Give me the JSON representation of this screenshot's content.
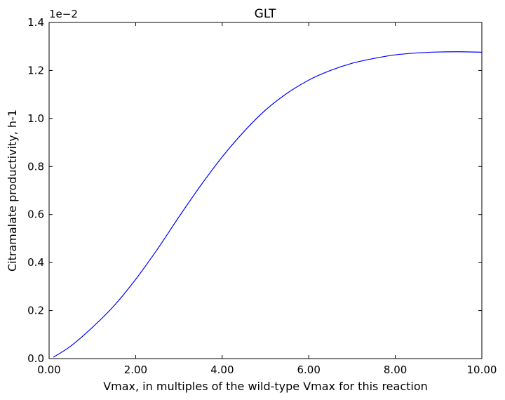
{
  "chart_data": {
    "type": "line",
    "title": "GLT",
    "xlabel": "Vmax, in multiples of the wild-type Vmax for this reaction",
    "ylabel": "Citramalate productivity, h-1",
    "y_offset_label": "1e−2",
    "xlim": [
      0,
      10
    ],
    "ylim": [
      0,
      1.4
    ],
    "grid": false,
    "x_ticks": [
      0,
      2,
      4,
      6,
      8,
      10
    ],
    "x_tick_labels": [
      "0.00",
      "2.00",
      "4.00",
      "6.00",
      "8.00",
      "10.00"
    ],
    "y_ticks": [
      0,
      0.2,
      0.4,
      0.6,
      0.8,
      1.0,
      1.2,
      1.4
    ],
    "y_tick_labels": [
      "0.0",
      "0.2",
      "0.4",
      "0.6",
      "0.8",
      "1.0",
      "1.2",
      "1.4"
    ],
    "series": [
      {
        "color": "#0000ff",
        "x": [
          0.1,
          0.5,
          1.0,
          1.5,
          2.0,
          2.5,
          3.0,
          3.5,
          4.0,
          4.5,
          5.0,
          5.5,
          6.0,
          6.5,
          7.0,
          7.5,
          8.0,
          8.5,
          9.0,
          9.5,
          10.0
        ],
        "y": [
          0.006,
          0.052,
          0.13,
          0.22,
          0.33,
          0.455,
          0.59,
          0.72,
          0.84,
          0.945,
          1.035,
          1.105,
          1.16,
          1.2,
          1.23,
          1.25,
          1.265,
          1.273,
          1.277,
          1.278,
          1.276
        ]
      }
    ]
  }
}
